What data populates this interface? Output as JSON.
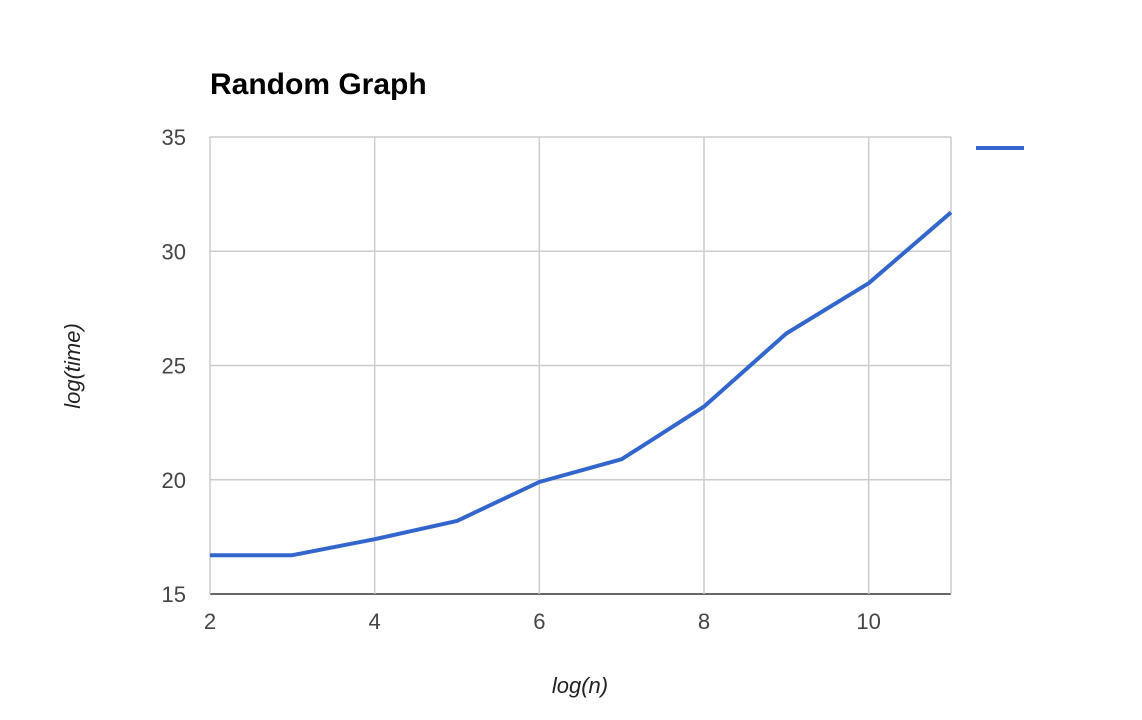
{
  "chart_data": {
    "type": "line",
    "title": "Random Graph",
    "xlabel": "log(n)",
    "ylabel": "log(time)",
    "xlim": [
      2,
      11
    ],
    "ylim": [
      15,
      35
    ],
    "xticks": [
      2,
      4,
      6,
      8,
      10
    ],
    "yticks": [
      15,
      20,
      25,
      30,
      35
    ],
    "grid": true,
    "legend": "right",
    "series": [
      {
        "color": "#3366cc",
        "x": [
          2,
          3,
          4,
          5,
          6,
          7,
          8,
          9,
          10,
          11
        ],
        "y": [
          16.7,
          16.7,
          17.4,
          18.2,
          19.9,
          20.9,
          23.2,
          26.4,
          28.6,
          31.7
        ]
      }
    ]
  }
}
